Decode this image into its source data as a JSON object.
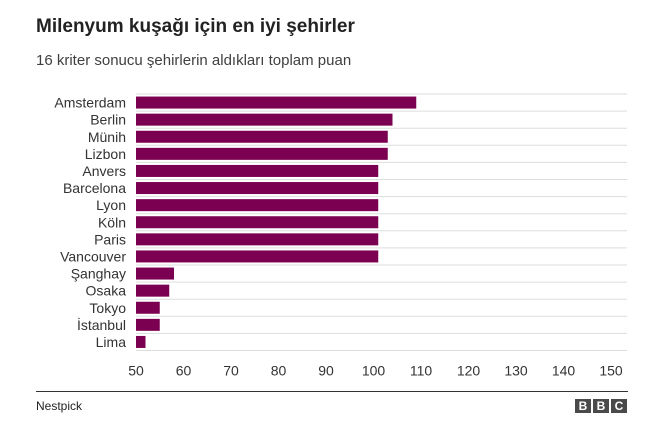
{
  "header": {
    "title": "Milenyum kuşağı için en iyi şehirler",
    "subtitle": "16 kriter sonucu şehirlerin aldıkları toplam puan"
  },
  "footer": {
    "source": "Nestpick",
    "logo_letters": [
      "B",
      "B",
      "C"
    ]
  },
  "chart_data": {
    "type": "bar",
    "orientation": "horizontal",
    "categories": [
      "Amsterdam",
      "Berlin",
      "Münih",
      "Lizbon",
      "Anvers",
      "Barcelona",
      "Lyon",
      "Köln",
      "Paris",
      "Vancouver",
      "Şanghay",
      "Osaka",
      "Tokyo",
      "İstanbul",
      "Lima"
    ],
    "values": [
      109,
      104,
      103,
      103,
      101,
      101,
      101,
      101,
      101,
      101,
      58,
      57,
      55,
      55,
      52
    ],
    "xlim": [
      50,
      150
    ],
    "xticks": [
      50,
      60,
      70,
      80,
      90,
      100,
      110,
      120,
      130,
      140,
      150
    ],
    "grid": true,
    "bar_color": "#7b0051",
    "grid_color": "#dddddd"
  }
}
